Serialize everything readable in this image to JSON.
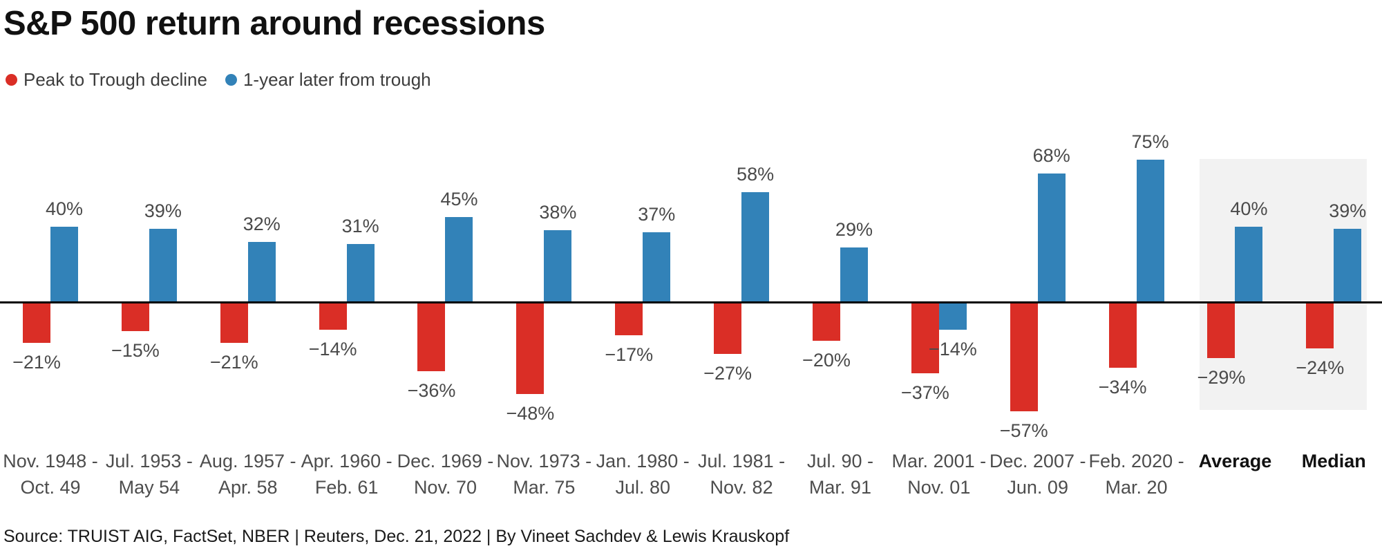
{
  "title": "S&P 500 return around recessions",
  "legend": {
    "items": [
      {
        "label": "Peak to Trough decline",
        "color": "#da2e26"
      },
      {
        "label": "1-year later from trough",
        "color": "#3282b8"
      }
    ]
  },
  "source_line": "Source: TRUIST AIG, FactSet, NBER | Reuters, Dec. 21, 2022 | By Vineet Sachdev & Lewis Krauskopf",
  "colors": {
    "decline_red": "#da2e26",
    "recovery_blue": "#3282b8",
    "highlight_panel_gray": "#f2f2f2",
    "axis_black": "#000000",
    "label_gray": "#4a4a4a"
  },
  "chart_data": {
    "type": "bar",
    "title": "S&P 500 return around recessions",
    "xlabel": "",
    "ylabel": "",
    "axis": "zero baseline only, no y-axis ticks or gridlines",
    "grid": false,
    "legend_position": "top-left",
    "data_labels": "percent, above positive bars and below negative bars",
    "categories": [
      [
        "Nov. 1948 -",
        "Oct. 49"
      ],
      [
        "Jul. 1953 -",
        "May 54"
      ],
      [
        "Aug. 1957 -",
        "Apr. 58"
      ],
      [
        "Apr. 1960 -",
        "Feb. 61"
      ],
      [
        "Dec. 1969 -",
        "Nov. 70"
      ],
      [
        "Nov. 1973 -",
        "Mar. 75"
      ],
      [
        "Jan. 1980 -",
        "Jul. 80"
      ],
      [
        "Jul. 1981 -",
        "Nov. 82"
      ],
      [
        "Jul. 90 -",
        "Mar. 91"
      ],
      [
        "Mar. 2001 -",
        "Nov. 01"
      ],
      [
        "Dec. 2007 -",
        "Jun. 09"
      ],
      [
        "Feb. 2020 -",
        "Mar. 20"
      ],
      [
        "Average"
      ],
      [
        "Median"
      ]
    ],
    "bold_categories": [
      "Average",
      "Median"
    ],
    "highlighted_categories": [
      "Average",
      "Median"
    ],
    "series": [
      {
        "name": "Peak to Trough decline",
        "color": "#da2e26",
        "values": [
          -21,
          -15,
          -21,
          -14,
          -36,
          -48,
          -17,
          -27,
          -20,
          -37,
          -57,
          -34,
          -29,
          -24
        ]
      },
      {
        "name": "1-year later from trough",
        "color": "#3282b8",
        "values": [
          40,
          39,
          32,
          31,
          45,
          38,
          37,
          58,
          29,
          -14,
          68,
          75,
          40,
          39
        ]
      }
    ],
    "unit": "%",
    "ylim": [
      -60,
      80
    ]
  }
}
